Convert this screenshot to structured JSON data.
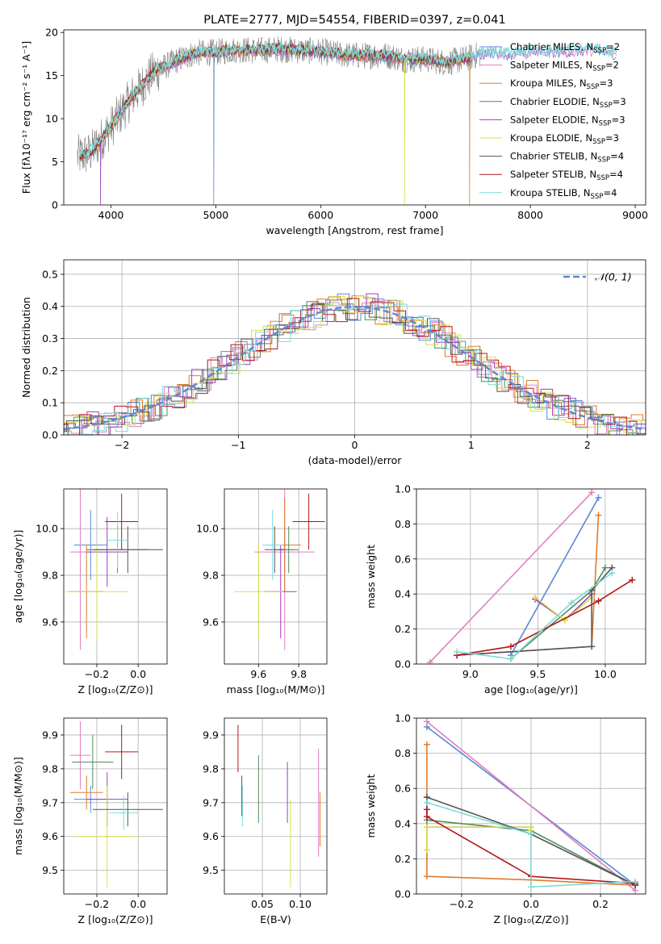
{
  "colors": {
    "chabrier_miles": "#5b87d6",
    "salpeter_miles": "#e17fbe",
    "kroupa_miles": "#e07b2a",
    "chabrier_elodie": "#4f8c5e",
    "salpeter_elodie": "#9b3fc0",
    "kroupa_elodie": "#d7e04a",
    "chabrier_stelib": "#555555",
    "salpeter_stelib": "#b01919",
    "kroupa_stelib": "#7fd9d9",
    "spectrum_data": "#7f7f7f",
    "grid": "#b0b0b0",
    "gaussian": "#5b87d6"
  },
  "chart_data": [
    {
      "id": "spectrum",
      "type": "line",
      "title": "PLATE=2777, MJD=54554, FIBERID=0397, z=0.041",
      "xlabel": "wavelength [Angstrom, rest frame]",
      "ylabel": "Flux [fλ10⁻¹⁷ erg cm⁻² s⁻¹ A⁻¹]",
      "xlim": [
        3550,
        9100
      ],
      "ylim": [
        0,
        20.3
      ],
      "xticks": [
        4000,
        5000,
        6000,
        7000,
        8000,
        9000
      ],
      "yticks": [
        0,
        5,
        10,
        15,
        20
      ],
      "continuum": [
        [
          3680,
          5.6
        ],
        [
          3800,
          6.0
        ],
        [
          4000,
          9.0
        ],
        [
          4200,
          12.5
        ],
        [
          4400,
          15.3
        ],
        [
          4600,
          16.6
        ],
        [
          4800,
          17.6
        ],
        [
          5000,
          17.7
        ],
        [
          5200,
          18.0
        ],
        [
          5400,
          17.9
        ],
        [
          5600,
          18.1
        ],
        [
          5800,
          17.9
        ],
        [
          6000,
          17.8
        ],
        [
          6200,
          17.4
        ],
        [
          6400,
          17.3
        ],
        [
          6600,
          17.4
        ],
        [
          6800,
          16.9
        ],
        [
          7000,
          16.9
        ],
        [
          7200,
          16.5
        ],
        [
          7400,
          17.0
        ],
        [
          7600,
          17.8
        ],
        [
          7800,
          17.5
        ],
        [
          8000,
          17.8
        ],
        [
          8200,
          17.8
        ],
        [
          8400,
          17.9
        ],
        [
          8600,
          18.0
        ],
        [
          8820,
          17.6
        ]
      ],
      "legend": [
        {
          "name": "Chabrier MILES, N",
          "sub": "SSP",
          "tail": "=2",
          "color_key": "chabrier_miles"
        },
        {
          "name": "Salpeter MILES, N",
          "sub": "SSP",
          "tail": "=2",
          "color_key": "salpeter_miles"
        },
        {
          "name": "Kroupa MILES, N",
          "sub": "SSP",
          "tail": "=3",
          "color_key": "kroupa_miles"
        },
        {
          "name": "Chabrier ELODIE, N",
          "sub": "SSP",
          "tail": "=3",
          "color_key": "chabrier_elodie"
        },
        {
          "name": "Salpeter ELODIE, N",
          "sub": "SSP",
          "tail": "=3",
          "color_key": "salpeter_elodie"
        },
        {
          "name": "Kroupa ELODIE, N",
          "sub": "SSP",
          "tail": "=3",
          "color_key": "kroupa_elodie"
        },
        {
          "name": "Chabrier STELIB, N",
          "sub": "SSP",
          "tail": "=4",
          "color_key": "chabrier_stelib"
        },
        {
          "name": "Salpeter STELIB, N",
          "sub": "SSP",
          "tail": "=4",
          "color_key": "salpeter_stelib"
        },
        {
          "name": "Kroupa STELIB, N",
          "sub": "SSP",
          "tail": "=4",
          "color_key": "kroupa_stelib"
        }
      ],
      "legend_placement": "upper-right",
      "grid": false
    },
    {
      "id": "residuals",
      "type": "line",
      "xlabel": "(data-model)/error",
      "ylabel": "Normed distribution",
      "xlim": [
        -2.5,
        2.5
      ],
      "ylim": [
        0,
        0.545
      ],
      "xticks": [
        -2,
        -1,
        0,
        1,
        2
      ],
      "xticklabels": [
        "−2",
        "−1",
        "0",
        "1",
        "2"
      ],
      "yticks": [
        0.0,
        0.1,
        0.2,
        0.3,
        0.4,
        0.5
      ],
      "yticklabels": [
        "0.0",
        "0.1",
        "0.2",
        "0.3",
        "0.4",
        "0.5"
      ],
      "bin_width": 0.1,
      "legend": [
        {
          "name": "𝒩(0, 1)",
          "color_key": "gaussian",
          "style": "dashed"
        }
      ],
      "legend_placement": "upper-right",
      "grid": true
    },
    {
      "id": "age_vs_Z",
      "type": "scatter",
      "xlabel": "Z [log₁₀(Z/Z⊙)]",
      "ylabel": "age  [log₁₀(age/yr)]",
      "xlim": [
        -0.36,
        0.14
      ],
      "ylim": [
        9.42,
        10.17
      ],
      "xticks": [
        -0.2,
        0.0
      ],
      "xticklabels": [
        "−0.2",
        "0.0"
      ],
      "yticks": [
        9.6,
        9.8,
        10.0
      ],
      "yticklabels": [
        "9.6",
        "9.8",
        "10.0"
      ],
      "series": [
        {
          "color_key": "chabrier_miles",
          "x": -0.23,
          "xerr": 0.08,
          "y": 9.93,
          "yerr": 0.15
        },
        {
          "color_key": "salpeter_miles",
          "x": -0.28,
          "xerr": 0.05,
          "y": 9.9,
          "yerr": 0.42
        },
        {
          "color_key": "kroupa_miles",
          "x": -0.25,
          "xerr": 0.08,
          "y": 9.73,
          "yerr": 0.2
        },
        {
          "color_key": "chabrier_elodie",
          "x": -0.1,
          "xerr": 0.15,
          "y": 9.91,
          "yerr": 0.1
        },
        {
          "color_key": "salpeter_elodie",
          "x": -0.15,
          "xerr": 0.1,
          "y": 9.9,
          "yerr": 0.15
        },
        {
          "color_key": "kroupa_elodie",
          "x": -0.2,
          "xerr": 0.15,
          "y": 9.73,
          "yerr": 0.2
        },
        {
          "color_key": "chabrier_stelib",
          "x": -0.05,
          "xerr": 0.17,
          "y": 9.91,
          "yerr": 0.1
        },
        {
          "color_key": "salpeter_stelib",
          "x": -0.08,
          "xerr": 0.08,
          "y": 10.03,
          "yerr": 0.12
        },
        {
          "color_key": "kroupa_stelib",
          "x": -0.1,
          "xerr": 0.05,
          "y": 9.95,
          "yerr": 0.12
        }
      ],
      "grid": true
    },
    {
      "id": "age_vs_mass",
      "type": "scatter",
      "xlabel": "mass [log₁₀(M/M⊙)]",
      "ylabel": "",
      "xlim": [
        9.43,
        9.94
      ],
      "ylim": [
        9.42,
        10.17
      ],
      "xticks": [
        9.6,
        9.8
      ],
      "xticklabels": [
        "9.6",
        "9.8"
      ],
      "yticks": [
        9.6,
        9.8,
        10.0
      ],
      "yticklabels": [
        "9.6",
        "9.8",
        "10.0"
      ],
      "series": [
        {
          "color_key": "chabrier_miles",
          "x": 9.73,
          "xerr": 0.05,
          "y": 9.91,
          "yerr": 0.1
        },
        {
          "color_key": "salpeter_miles",
          "x": 9.73,
          "xerr": 0.15,
          "y": 9.9,
          "yerr": 0.42
        },
        {
          "color_key": "kroupa_miles",
          "x": 9.73,
          "xerr": 0.08,
          "y": 9.93,
          "yerr": 0.2
        },
        {
          "color_key": "chabrier_elodie",
          "x": 9.75,
          "xerr": 0.05,
          "y": 9.91,
          "yerr": 0.1
        },
        {
          "color_key": "salpeter_elodie",
          "x": 9.71,
          "xerr": 0.08,
          "y": 9.73,
          "yerr": 0.2
        },
        {
          "color_key": "kroupa_elodie",
          "x": 9.6,
          "xerr": 0.12,
          "y": 9.73,
          "yerr": 0.2
        },
        {
          "color_key": "chabrier_stelib",
          "x": 9.68,
          "xerr": 0.05,
          "y": 9.91,
          "yerr": 0.1
        },
        {
          "color_key": "salpeter_stelib",
          "x": 9.85,
          "xerr": 0.08,
          "y": 10.03,
          "yerr": 0.12
        },
        {
          "color_key": "kroupa_stelib",
          "x": 9.67,
          "xerr": 0.05,
          "y": 9.93,
          "yerr": 0.15
        }
      ],
      "grid": true
    },
    {
      "id": "weight_vs_age",
      "type": "line",
      "xlabel": "age  [log₁₀(age/yr)]",
      "ylabel": "mass weight",
      "xlim": [
        8.6,
        10.3
      ],
      "ylim": [
        0,
        1.0
      ],
      "xticks": [
        9.0,
        9.5,
        10.0
      ],
      "xticklabels": [
        "9.0",
        "9.5",
        "10.0"
      ],
      "yticks": [
        0.0,
        0.2,
        0.4,
        0.6,
        0.8,
        1.0
      ],
      "yticklabels": [
        "0.0",
        "0.2",
        "0.4",
        "0.6",
        "0.8",
        "1.0"
      ],
      "series": [
        {
          "color_key": "chabrier_miles",
          "x": [
            9.3,
            9.95
          ],
          "y": [
            0.05,
            0.95
          ]
        },
        {
          "color_key": "salpeter_miles",
          "x": [
            8.7,
            9.9
          ],
          "y": [
            0.01,
            0.98
          ]
        },
        {
          "color_key": "kroupa_miles",
          "x": [
            8.9,
            9.9,
            9.95
          ],
          "y": [
            0.05,
            0.1,
            0.85
          ]
        },
        {
          "color_key": "chabrier_elodie",
          "x": [
            9.3,
            9.9,
            10.0
          ],
          "y": [
            0.03,
            0.42,
            0.55
          ]
        },
        {
          "color_key": "salpeter_elodie",
          "x": [
            9.48,
            9.7,
            9.9
          ],
          "y": [
            0.37,
            0.25,
            0.4
          ]
        },
        {
          "color_key": "kroupa_elodie",
          "x": [
            9.48,
            9.7,
            9.9
          ],
          "y": [
            0.38,
            0.25,
            0.38
          ]
        },
        {
          "color_key": "chabrier_stelib",
          "x": [
            8.9,
            9.9,
            9.9,
            10.05
          ],
          "y": [
            0.05,
            0.1,
            0.42,
            0.55
          ]
        },
        {
          "color_key": "salpeter_stelib",
          "x": [
            8.9,
            9.3,
            9.95,
            10.2
          ],
          "y": [
            0.05,
            0.1,
            0.36,
            0.48
          ]
        },
        {
          "color_key": "kroupa_stelib",
          "x": [
            8.9,
            9.3,
            9.75,
            10.05
          ],
          "y": [
            0.07,
            0.03,
            0.35,
            0.52
          ]
        }
      ],
      "grid": true
    },
    {
      "id": "mass_vs_Z",
      "type": "scatter",
      "xlabel": "Z [log₁₀(Z/Z⊙)]",
      "ylabel": "mass [log₁₀(M/M⊙)]",
      "xlim": [
        -0.36,
        0.14
      ],
      "ylim": [
        9.43,
        9.95
      ],
      "xticks": [
        -0.2,
        0.0
      ],
      "xticklabels": [
        "−0.2",
        "0.0"
      ],
      "yticks": [
        9.5,
        9.6,
        9.7,
        9.8,
        9.9
      ],
      "yticklabels": [
        "9.5",
        "9.6",
        "9.7",
        "9.8",
        "9.9"
      ],
      "series": [
        {
          "color_key": "chabrier_miles",
          "x": -0.23,
          "xerr": 0.08,
          "y": 9.71,
          "yerr": 0.04
        },
        {
          "color_key": "salpeter_miles",
          "x": -0.28,
          "xerr": 0.05,
          "y": 9.84,
          "yerr": 0.1
        },
        {
          "color_key": "kroupa_miles",
          "x": -0.25,
          "xerr": 0.08,
          "y": 9.73,
          "yerr": 0.05
        },
        {
          "color_key": "chabrier_elodie",
          "x": -0.22,
          "xerr": 0.1,
          "y": 9.82,
          "yerr": 0.08
        },
        {
          "color_key": "salpeter_elodie",
          "x": -0.15,
          "xerr": 0.1,
          "y": 9.71,
          "yerr": 0.08
        },
        {
          "color_key": "kroupa_elodie",
          "x": -0.15,
          "xerr": 0.15,
          "y": 9.6,
          "yerr": 0.15
        },
        {
          "color_key": "chabrier_stelib",
          "x": -0.05,
          "xerr": 0.17,
          "y": 9.68,
          "yerr": 0.05
        },
        {
          "color_key": "salpeter_stelib",
          "x": -0.08,
          "xerr": 0.08,
          "y": 9.85,
          "yerr": 0.08
        },
        {
          "color_key": "kroupa_stelib",
          "x": -0.07,
          "xerr": 0.07,
          "y": 9.67,
          "yerr": 0.05
        }
      ],
      "grid": true
    },
    {
      "id": "mass_vs_ebv",
      "type": "scatter",
      "xlabel": "E(B-V)",
      "ylabel": "",
      "xlim": [
        0.0,
        0.135
      ],
      "ylim": [
        9.43,
        9.95
      ],
      "xticks": [
        0.05,
        0.1
      ],
      "xticklabels": [
        "0.05",
        "0.10"
      ],
      "yticks": [
        9.5,
        9.6,
        9.7,
        9.8,
        9.9
      ],
      "yticklabels": [
        "9.5",
        "9.6",
        "9.7",
        "9.8",
        "9.9"
      ],
      "series": [
        {
          "color_key": "salpeter_stelib",
          "x": 0.018,
          "y": 9.86,
          "yerr": 0.07
        },
        {
          "color_key": "chabrier_stelib",
          "x": 0.023,
          "y": 9.72,
          "yerr": 0.06
        },
        {
          "color_key": "kroupa_stelib",
          "x": 0.024,
          "y": 9.69,
          "yerr": 0.06
        },
        {
          "color_key": "chabrier_elodie",
          "x": 0.045,
          "y": 9.74,
          "yerr": 0.1
        },
        {
          "color_key": "salpeter_elodie",
          "x": 0.083,
          "y": 9.73,
          "yerr": 0.09
        },
        {
          "color_key": "kroupa_elodie",
          "x": 0.087,
          "y": 9.58,
          "yerr": 0.13
        },
        {
          "color_key": "salpeter_miles",
          "x": 0.124,
          "y": 9.7,
          "yerr": 0.16
        },
        {
          "color_key": "kroupa_miles",
          "x": 0.126,
          "y": 9.65,
          "yerr": 0.08
        }
      ],
      "grid": true
    },
    {
      "id": "weight_vs_Z",
      "type": "line",
      "xlabel": "Z [log₁₀(Z/Z⊙)]",
      "ylabel": "mass weight",
      "xlim": [
        -0.33,
        0.33
      ],
      "ylim": [
        0,
        1.0
      ],
      "xticks": [
        -0.2,
        0.0,
        0.2
      ],
      "xticklabels": [
        "−0.2",
        "0.0",
        "0.2"
      ],
      "yticks": [
        0.0,
        0.2,
        0.4,
        0.6,
        0.8,
        1.0
      ],
      "yticklabels": [
        "0.0",
        "0.2",
        "0.4",
        "0.6",
        "0.8",
        "1.0"
      ],
      "series": [
        {
          "color_key": "chabrier_miles",
          "x": [
            -0.3,
            0.3
          ],
          "y": [
            0.95,
            0.05
          ]
        },
        {
          "color_key": "salpeter_miles",
          "x": [
            -0.3,
            0.3
          ],
          "y": [
            0.98,
            0.02
          ]
        },
        {
          "color_key": "kroupa_miles",
          "x": [
            -0.3,
            -0.3,
            0.0,
            0.3
          ],
          "y": [
            0.85,
            0.1,
            0.08,
            0.05
          ]
        },
        {
          "color_key": "chabrier_elodie",
          "x": [
            -0.3,
            -0.3,
            0.0,
            0.3
          ],
          "y": [
            0.55,
            0.42,
            0.36,
            0.05
          ]
        },
        {
          "color_key": "salpeter_elodie",
          "x": [
            -0.3,
            0.0
          ],
          "y": [
            0.38,
            0.38
          ]
        },
        {
          "color_key": "kroupa_elodie",
          "x": [
            -0.3,
            -0.3,
            0.0,
            0.0
          ],
          "y": [
            0.25,
            0.38,
            0.38,
            0.36
          ]
        },
        {
          "color_key": "chabrier_stelib",
          "x": [
            -0.3,
            0.0,
            0.3,
            0.3
          ],
          "y": [
            0.55,
            0.34,
            0.05,
            0.05
          ]
        },
        {
          "color_key": "salpeter_stelib",
          "x": [
            -0.3,
            -0.3,
            0.0,
            0.3
          ],
          "y": [
            0.48,
            0.44,
            0.1,
            0.06
          ]
        },
        {
          "color_key": "kroupa_stelib",
          "x": [
            -0.3,
            0.0,
            0.0,
            0.3
          ],
          "y": [
            0.52,
            0.34,
            0.04,
            0.07
          ]
        }
      ],
      "grid": true
    }
  ]
}
